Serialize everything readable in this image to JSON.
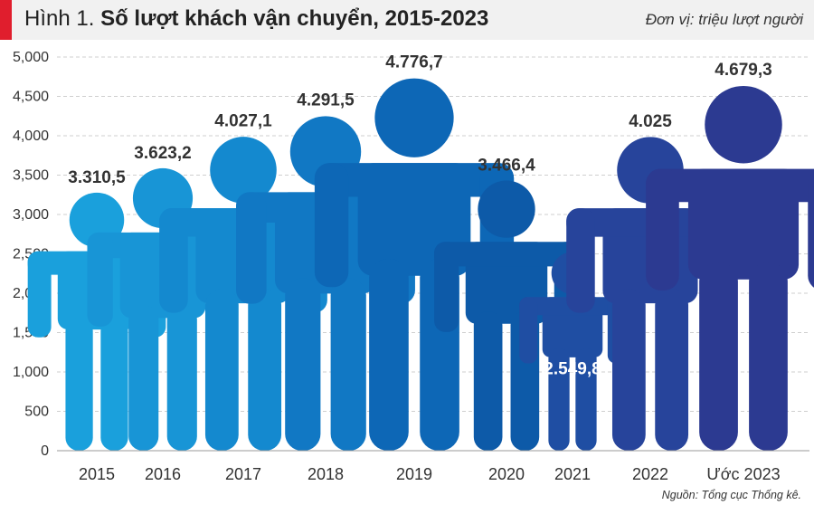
{
  "header": {
    "title_prefix": "Hình 1.",
    "title": "Số lượt khách vận chuyển, 2015-2023",
    "unit": "Đơn vị: triệu lượt người"
  },
  "source": "Nguồn: Tổng cục Thống kê.",
  "colors": {
    "accent": "#e01e2d",
    "title_bar": "#f1f1f1"
  },
  "chart_data": {
    "type": "bar",
    "style": "pictograph-person",
    "categories": [
      "2015",
      "2016",
      "2017",
      "2018",
      "2019",
      "2020",
      "2021",
      "2022",
      "Ước 2023"
    ],
    "values": [
      3310.5,
      3623.2,
      4027.1,
      4291.5,
      4776.7,
      3466.4,
      2549.8,
      4025,
      4679.3
    ],
    "value_labels": [
      "3.310,5",
      "3.623,2",
      "4.027,1",
      "4.291,5",
      "4.776,7",
      "3.466,4",
      "2.549,8",
      "4.025",
      "4.679,3"
    ],
    "colors": [
      "#1aa0dc",
      "#1895d6",
      "#1489cf",
      "#1178c4",
      "#0d67b6",
      "#0d5aa8",
      "#1f4ea3",
      "#27449b",
      "#2c3a91"
    ],
    "yticks": [
      "0",
      "500",
      "1,000",
      "1,500",
      "2,000",
      "2,500",
      "3,000",
      "3,500",
      "4,000",
      "4,500",
      "5,000"
    ],
    "ylim": [
      0,
      5000
    ],
    "grid": true,
    "xlabel": "",
    "ylabel": ""
  }
}
